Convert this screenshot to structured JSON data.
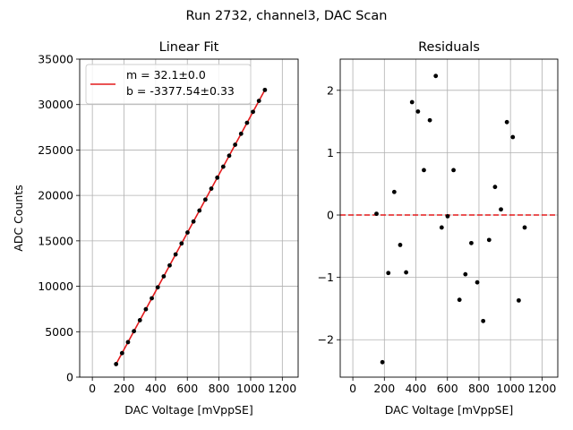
{
  "suptitle": "Run 2732, channel3, DAC Scan",
  "colors": {
    "fit_line": "#e41a1c",
    "points": "#000000",
    "zero_line": "#e41a1c",
    "grid": "#b0b0b0"
  },
  "chart_data": [
    {
      "type": "scatter",
      "title": "Linear Fit",
      "xlabel": "DAC Voltage [mVppSE]",
      "ylabel": "ADC Counts",
      "xlim": [
        -80,
        1300
      ],
      "ylim": [
        0,
        35000
      ],
      "xticks": [
        0,
        200,
        400,
        600,
        800,
        1000,
        1200
      ],
      "yticks": [
        0,
        5000,
        10000,
        15000,
        20000,
        25000,
        30000,
        35000
      ],
      "grid": true,
      "legend_position": "upper-left",
      "legend": [
        "m = 32.1±0.0",
        "b = -3377.54±0.33"
      ],
      "fit": {
        "slope": 32.1,
        "intercept": -3377.54,
        "x_range": [
          150,
          1090
        ]
      },
      "series": [
        {
          "x": [
            150,
            187.6,
            225.2,
            262.8,
            300.4,
            338,
            375.6,
            413.2,
            450.8,
            488.4,
            526,
            563.6,
            601.2,
            638.8,
            676.4,
            714,
            751.6,
            789.2,
            826.8,
            864.4,
            902,
            939.6,
            977.2,
            1014.8,
            1052.4,
            1090
          ],
          "y": [
            1437.5,
            2644.5,
            3851.4,
            5058.4,
            6265.3,
            7472.3,
            8679.3,
            9886.2,
            11093.2,
            12300.2,
            13507.1,
            14714.1,
            15921.0,
            17128.0,
            18335.0,
            19541.9,
            20748.9,
            21955.8,
            23162.8,
            24369.8,
            25576.7,
            26783.7,
            27990.6,
            29197.6,
            30404.6,
            31611.5
          ]
        }
      ]
    },
    {
      "type": "scatter",
      "title": "Residuals",
      "xlabel": "DAC Voltage [mVppSE]",
      "xlim": [
        -80,
        1300
      ],
      "ylim": [
        -2.6,
        2.5
      ],
      "xticks": [
        0,
        200,
        400,
        600,
        800,
        1000,
        1200
      ],
      "yticks": [
        -2,
        -1,
        0,
        1,
        2
      ],
      "grid": true,
      "reference_line": 0,
      "series": [
        {
          "x": [
            150,
            187.6,
            225.2,
            262.8,
            300.4,
            338,
            375.6,
            413.2,
            450.8,
            488.4,
            526,
            563.6,
            601.2,
            638.8,
            676.4,
            714,
            751.6,
            789.2,
            826.8,
            864.4,
            902,
            939.6,
            977.2,
            1014.8,
            1052.4,
            1090
          ],
          "y": [
            0.02,
            -2.36,
            -0.93,
            0.37,
            -0.48,
            -0.92,
            1.81,
            1.66,
            0.72,
            1.52,
            2.23,
            -0.2,
            -0.02,
            0.72,
            -1.36,
            -0.95,
            -0.45,
            -1.08,
            -1.7,
            -0.4,
            0.45,
            0.09,
            1.49,
            1.25,
            -1.37,
            -0.2
          ]
        }
      ]
    }
  ]
}
